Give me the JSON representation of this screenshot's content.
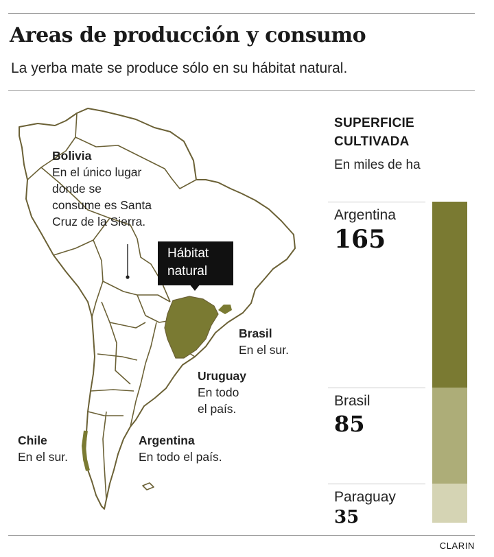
{
  "header": {
    "title": "Areas de producción y consumo",
    "subtitle": "La yerba mate se produce sólo en su hábitat natural."
  },
  "map": {
    "habitat_label_line1": "Hábitat",
    "habitat_label_line2": "natural",
    "land_color": "#ffffff",
    "border_color": "#6b6136",
    "habitat_color": "#7a7a32",
    "annotations": {
      "bolivia": {
        "name": "Bolivia",
        "text_lines": [
          "En el único lugar",
          "donde se",
          "consume es Santa",
          "Cruz de la Sierra."
        ]
      },
      "brasil": {
        "name": "Brasil",
        "text_lines": [
          "En el sur."
        ]
      },
      "uruguay": {
        "name": "Uruguay",
        "text_lines": [
          "En todo",
          "el país."
        ]
      },
      "chile": {
        "name": "Chile",
        "text_lines": [
          "En el sur."
        ]
      },
      "argentina": {
        "name": "Argentina",
        "text_lines": [
          "En todo el país."
        ]
      }
    }
  },
  "legend": {
    "heading_line1": "SUPERFICIE",
    "heading_line2": "CULTIVADA",
    "unit": "En miles de ha"
  },
  "chart_data": {
    "type": "bar",
    "orientation": "stacked-vertical",
    "title": "SUPERFICIE CULTIVADA",
    "ylabel": "En miles de ha",
    "categories": [
      "Argentina",
      "Brasil",
      "Paraguay"
    ],
    "values": [
      165,
      85,
      35
    ],
    "colors": [
      "#7a7a32",
      "#adad78",
      "#d5d4b4"
    ]
  },
  "footer": {
    "source": "CLARIN"
  }
}
